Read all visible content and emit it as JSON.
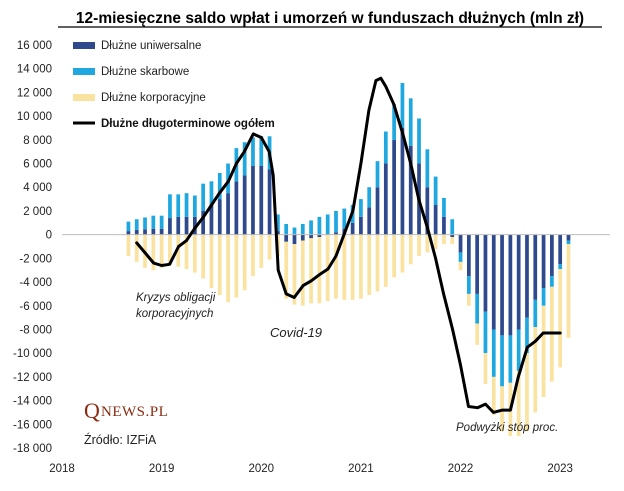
{
  "chart_data": {
    "type": "bar",
    "title": "12-miesięczne saldo wpłat i umorzeń w funduszach dłużnych (mln zł)",
    "stacked": true,
    "ylim": [
      -18000,
      16000
    ],
    "yticks": [
      -18000,
      -16000,
      -14000,
      -12000,
      -10000,
      -8000,
      -6000,
      -4000,
      -2000,
      0,
      2000,
      4000,
      6000,
      8000,
      10000,
      12000,
      14000,
      16000
    ],
    "ytick_labels": [
      "-18 000",
      "-16 000",
      "-14 000",
      "-12 000",
      "-10 000",
      "-8 000",
      "-6 000",
      "-4 000",
      "-2 000",
      "0",
      "2 000",
      "4 000",
      "6 000",
      "8 000",
      "10 000",
      "12 000",
      "14 000",
      "16 000"
    ],
    "x_year_labels": [
      "2018",
      "2019",
      "2020",
      "2021",
      "2022",
      "2023"
    ],
    "x_year_values": [
      2018,
      2019,
      2020,
      2021,
      2022,
      2023
    ],
    "xlim": [
      2018,
      2023.5
    ],
    "grid": false,
    "legend_position": "top-left",
    "colors": {
      "universal": "#2e4a8c",
      "treasury": "#1fa8e0",
      "corporate": "#fae3a0",
      "total": "#000000"
    },
    "x_months": [
      "2018-09",
      "2018-10",
      "2018-11",
      "2018-12",
      "2019-01",
      "2019-02",
      "2019-03",
      "2019-04",
      "2019-05",
      "2019-06",
      "2019-07",
      "2019-08",
      "2019-09",
      "2019-10",
      "2019-11",
      "2019-12",
      "2020-01",
      "2020-02",
      "2020-03",
      "2020-04",
      "2020-05",
      "2020-06",
      "2020-07",
      "2020-08",
      "2020-09",
      "2020-10",
      "2020-11",
      "2020-12",
      "2021-01",
      "2021-02",
      "2021-03",
      "2021-04",
      "2021-05",
      "2021-06",
      "2021-07",
      "2021-08",
      "2021-09",
      "2021-10",
      "2021-11",
      "2021-12",
      "2022-01",
      "2022-02",
      "2022-03",
      "2022-04",
      "2022-05",
      "2022-06",
      "2022-07",
      "2022-08",
      "2022-09",
      "2022-10",
      "2022-11",
      "2022-12",
      "2023-01",
      "2023-02"
    ],
    "series": [
      {
        "name": "Dłużne uniwersalne",
        "values": [
          300,
          400,
          450,
          500,
          500,
          1400,
          1500,
          1500,
          1500,
          2000,
          2500,
          3000,
          3500,
          4500,
          5000,
          5800,
          5800,
          5500,
          300,
          -600,
          -800,
          -500,
          -300,
          -200,
          0,
          200,
          500,
          1000,
          1500,
          2300,
          4000,
          6000,
          8000,
          9000,
          7500,
          6000,
          4000,
          2500,
          1500,
          -200,
          -1500,
          -3500,
          -5000,
          -6500,
          -8000,
          -8500,
          -8500,
          -8000,
          -7000,
          -5500,
          -4500,
          -3500,
          -2500,
          -500
        ],
        "stack": "main"
      },
      {
        "name": "Dłużne skarbowe",
        "values": [
          800,
          900,
          1000,
          1100,
          1100,
          2000,
          1900,
          2000,
          1800,
          2300,
          2000,
          2200,
          2500,
          2800,
          2800,
          2400,
          2500,
          2800,
          1400,
          900,
          600,
          900,
          1200,
          1500,
          1700,
          1800,
          1700,
          1500,
          1500,
          1700,
          2200,
          2700,
          3000,
          3800,
          4000,
          3800,
          3200,
          2400,
          1600,
          1300,
          -800,
          -1500,
          -2500,
          -3500,
          -4000,
          -4300,
          -4000,
          -3500,
          -3000,
          -2300,
          -1500,
          -900,
          -400,
          -300
        ]
      },
      {
        "name": "Dłużne korporacyjne",
        "values": [
          -1800,
          -2300,
          -2800,
          -3000,
          -2800,
          -2600,
          -2700,
          -2900,
          -3200,
          -3700,
          -4500,
          -5100,
          -5700,
          -5300,
          -4700,
          -3500,
          -2800,
          -2100,
          -1800,
          -4800,
          -5100,
          -5500,
          -5500,
          -5600,
          -5600,
          -5400,
          -5500,
          -5500,
          -5400,
          -5100,
          -4800,
          -4400,
          -3600,
          -3200,
          -2500,
          -1800,
          -1500,
          -1200,
          -800,
          -600,
          -700,
          -1000,
          -1800,
          -2600,
          -3200,
          -3800,
          -4500,
          -5500,
          -6600,
          -7200,
          -7700,
          -8000,
          -8300,
          -7900
        ]
      },
      {
        "name": "Dłużne długoterminowe ogółem",
        "type": "line",
        "x": [
          2018.75,
          2018.83,
          2018.92,
          2019.0,
          2019.08,
          2019.17,
          2019.25,
          2019.33,
          2019.42,
          2019.5,
          2019.58,
          2019.67,
          2019.75,
          2019.83,
          2019.92,
          2020.0,
          2020.08,
          2020.12,
          2020.17,
          2020.25,
          2020.33,
          2020.42,
          2020.5,
          2020.58,
          2020.67,
          2020.75,
          2020.83,
          2020.92,
          2021.0,
          2021.08,
          2021.15,
          2021.2,
          2021.25,
          2021.33,
          2021.42,
          2021.5,
          2021.58,
          2021.67,
          2021.75,
          2021.83,
          2021.92,
          2022.0,
          2022.08,
          2022.17,
          2022.25,
          2022.33,
          2022.42,
          2022.5,
          2022.58,
          2022.67,
          2022.75,
          2022.83,
          2022.92,
          2023.0
        ],
        "values": [
          -700,
          -1500,
          -2400,
          -2600,
          -2500,
          -1000,
          -500,
          500,
          1500,
          2500,
          3500,
          4500,
          6000,
          7000,
          8500,
          8200,
          7000,
          5000,
          -3000,
          -5000,
          -5300,
          -4300,
          -3900,
          -3400,
          -2900,
          -1800,
          0,
          2000,
          6000,
          10500,
          13000,
          13200,
          12500,
          11000,
          8500,
          6000,
          3000,
          500,
          -2000,
          -5000,
          -8000,
          -11000,
          -14500,
          -14600,
          -14300,
          -15000,
          -14800,
          -14800,
          -12000,
          -9500,
          -9000,
          -8300,
          -8300,
          -8300
        ]
      }
    ],
    "annotations": [
      {
        "text": "Kryzys obligacji",
        "line": 1
      },
      {
        "text": "korporacyjnych",
        "line": 2
      },
      {
        "text": "Covid-19"
      },
      {
        "text": "Podwyżki stóp proc."
      }
    ],
    "source": "Źródło: IZFiA",
    "logo": {
      "q": "Q",
      "rest": "NEWS.PL"
    }
  }
}
